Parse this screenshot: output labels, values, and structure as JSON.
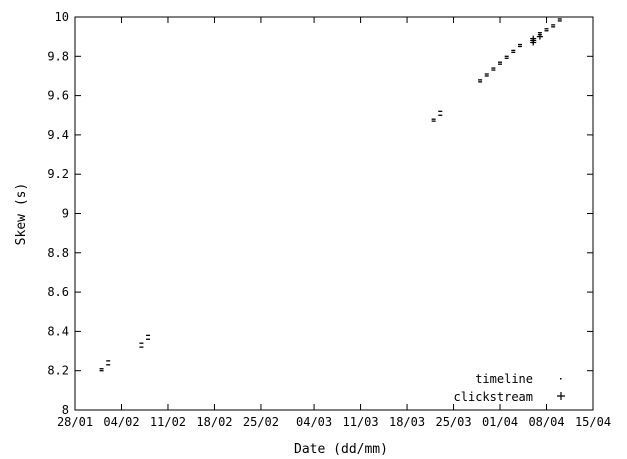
{
  "chart_data": {
    "type": "scatter",
    "xlabel": "Date (dd/mm)",
    "ylabel": "Skew (s)",
    "ylim": [
      8,
      10
    ],
    "yticks": [
      8,
      8.2,
      8.4,
      8.6,
      8.8,
      9,
      9.2,
      9.4,
      9.6,
      9.8,
      10
    ],
    "ytick_labels": [
      "8",
      "8.2",
      "8.4",
      "8.6",
      "8.8",
      "9",
      "9.2",
      "9.4",
      "9.6",
      "9.8",
      "10"
    ],
    "xlim": [
      "28/01",
      "15/04"
    ],
    "xticks": [
      "28/01",
      "04/02",
      "11/02",
      "18/02",
      "25/02",
      "04/03",
      "11/03",
      "18/03",
      "25/03",
      "01/04",
      "08/04",
      "15/04"
    ],
    "grid": false,
    "legend_position": "bottom-right",
    "series": [
      {
        "name": "timeline",
        "marker": "dot",
        "x": [
          "01/02",
          "01/02",
          "02/02",
          "02/02",
          "07/02",
          "07/02",
          "08/02",
          "08/02",
          "22/03",
          "22/03",
          "23/03",
          "23/03",
          "29/03",
          "29/03",
          "30/03",
          "30/03",
          "31/03",
          "31/03",
          "01/04",
          "01/04",
          "02/04",
          "02/04",
          "03/04",
          "03/04",
          "04/04",
          "04/04",
          "06/04",
          "06/04",
          "07/04",
          "07/04",
          "08/04",
          "08/04",
          "09/04",
          "09/04",
          "10/04",
          "10/04"
        ],
        "y": [
          8.2,
          8.21,
          8.23,
          8.25,
          8.32,
          8.34,
          8.36,
          8.38,
          9.47,
          9.48,
          9.5,
          9.52,
          9.67,
          9.68,
          9.7,
          9.71,
          9.73,
          9.74,
          9.76,
          9.77,
          9.79,
          9.8,
          9.82,
          9.83,
          9.85,
          9.86,
          9.88,
          9.89,
          9.91,
          9.92,
          9.93,
          9.94,
          9.95,
          9.96,
          9.98,
          9.99
        ]
      },
      {
        "name": "clickstream",
        "marker": "plus",
        "x": [
          "06/04",
          "06/04",
          "06/04",
          "07/04"
        ],
        "y": [
          9.87,
          9.88,
          9.89,
          9.9
        ]
      }
    ]
  }
}
